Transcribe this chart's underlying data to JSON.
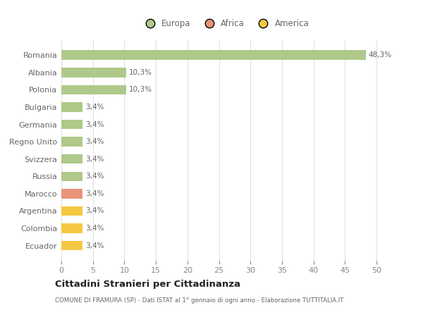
{
  "countries": [
    "Romania",
    "Albania",
    "Polonia",
    "Bulgaria",
    "Germania",
    "Regno Unito",
    "Svizzera",
    "Russia",
    "Marocco",
    "Argentina",
    "Colombia",
    "Ecuador"
  ],
  "values": [
    48.3,
    10.3,
    10.3,
    3.4,
    3.4,
    3.4,
    3.4,
    3.4,
    3.4,
    3.4,
    3.4,
    3.4
  ],
  "labels": [
    "48,3%",
    "10,3%",
    "10,3%",
    "3,4%",
    "3,4%",
    "3,4%",
    "3,4%",
    "3,4%",
    "3,4%",
    "3,4%",
    "3,4%",
    "3,4%"
  ],
  "colors": [
    "#aec98a",
    "#aec98a",
    "#aec98a",
    "#aec98a",
    "#aec98a",
    "#aec98a",
    "#aec98a",
    "#aec98a",
    "#e8937a",
    "#f5c842",
    "#f5c842",
    "#f5c842"
  ],
  "legend_labels": [
    "Europa",
    "Africa",
    "America"
  ],
  "legend_colors": [
    "#aec98a",
    "#e8937a",
    "#f5c842"
  ],
  "title": "Cittadini Stranieri per Cittadinanza",
  "subtitle": "COMUNE DI FRAMURA (SP) - Dati ISTAT al 1° gennaio di ogni anno - Elaborazione TUTTITALIA.IT",
  "xlim": [
    0,
    52
  ],
  "xticks": [
    0,
    5,
    10,
    15,
    20,
    25,
    30,
    35,
    40,
    45,
    50
  ],
  "background_color": "#ffffff",
  "grid_color": "#e0e0e0"
}
